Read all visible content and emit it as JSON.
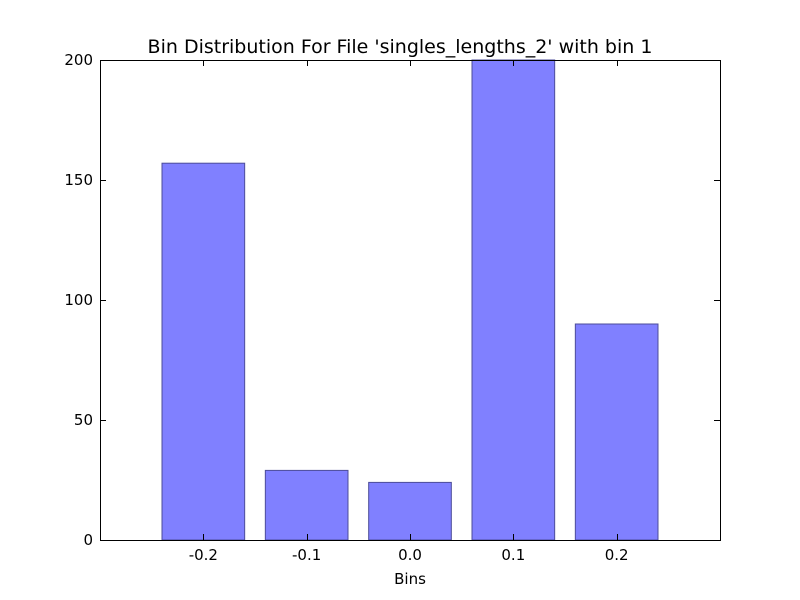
{
  "chart_data": {
    "type": "bar",
    "title": "Bin Distribution For File 'singles_lengths_2' with bin 1",
    "xlabel": "Bins",
    "ylabel": "",
    "categories": [
      "-0.2",
      "-0.1",
      "0.0",
      "0.1",
      "0.2"
    ],
    "x": [
      -0.2,
      -0.1,
      0.0,
      0.1,
      0.2
    ],
    "values": [
      157,
      29,
      24,
      200,
      90
    ],
    "xlim": [
      -0.3,
      0.3
    ],
    "ylim": [
      0,
      200
    ],
    "yticks": [
      0,
      50,
      100,
      150,
      200
    ],
    "bar_color": "#8080ff",
    "bar_edge_color": "#4d4d99",
    "grid": false,
    "legend": "none"
  }
}
